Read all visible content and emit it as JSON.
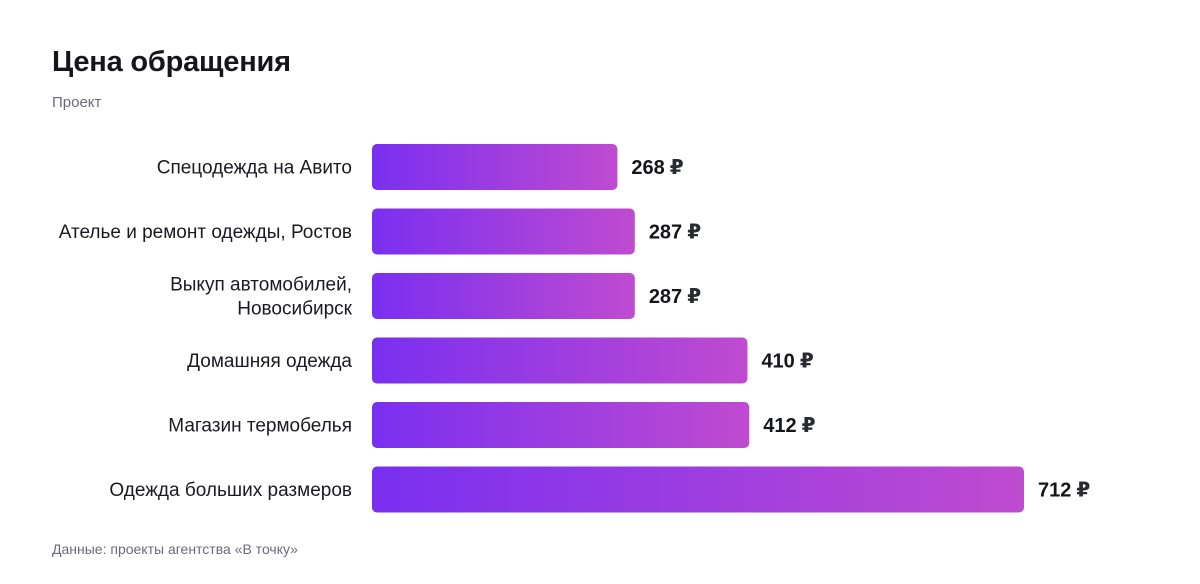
{
  "header": {
    "title": "Цена обращения",
    "subtitle": "Проект"
  },
  "footer": {
    "source": "Данные: проекты агентства «В точку»"
  },
  "colors": {
    "bar_start": "#7a2ff0",
    "bar_end": "#bf4bd0"
  },
  "chart_data": {
    "type": "bar",
    "orientation": "horizontal",
    "title": "Цена обращения",
    "subtitle": "Проект",
    "unit": "₽",
    "categories": [
      [
        "Спецодежда на Авито"
      ],
      [
        "Ателье и ремонт одежды, Ростов"
      ],
      [
        "Выкуп автомобилей,",
        "Новосибирск"
      ],
      [
        "Домашняя одежда"
      ],
      [
        "Магазин термобелья"
      ],
      [
        "Одежда больших размеров"
      ]
    ],
    "values": [
      268,
      287,
      287,
      410,
      412,
      712
    ],
    "xlim": [
      0,
      712
    ],
    "grid": false,
    "legend": "none"
  }
}
